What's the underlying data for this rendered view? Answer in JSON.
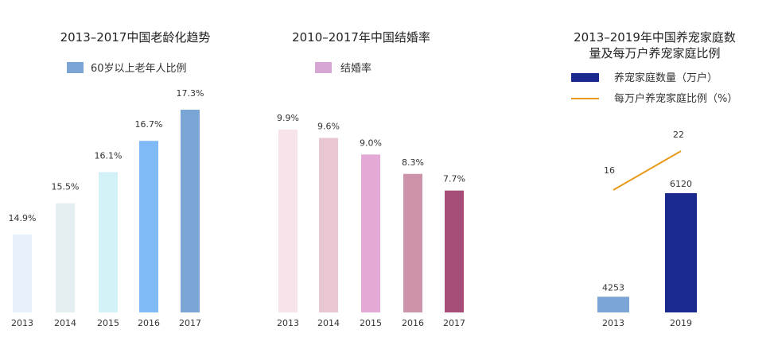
{
  "chart_data": [
    {
      "type": "bar",
      "title": "2013–2017中国老龄化趋势",
      "categories": [
        "2013",
        "2014",
        "2015",
        "2016",
        "2017"
      ],
      "series": [
        {
          "name": "60岁以上老年人比例",
          "values": [
            14.9,
            15.5,
            16.1,
            16.7,
            17.3
          ],
          "labels": [
            "14.9%",
            "15.5%",
            "16.1%",
            "16.7%",
            "17.3%"
          ],
          "colors": [
            "#e6f1fb",
            "#e3eff0",
            "#d3f2f8",
            "#7fbaf6",
            "#7aa5d4"
          ]
        }
      ],
      "legend_color": "#7aa5d4"
    },
    {
      "type": "bar",
      "title": "2010–2017年中国结婚率",
      "categories": [
        "2013",
        "2014",
        "2015",
        "2016",
        "2017"
      ],
      "series": [
        {
          "name": "结婚率",
          "values": [
            9.9,
            9.6,
            9.0,
            8.3,
            7.7
          ],
          "labels": [
            "9.9%",
            "9.6%",
            "9.0%",
            "8.3%",
            "7.7%"
          ],
          "colors": [
            "#f6e4ea",
            "#e9c7d2",
            "#e5a9d8",
            "#cc93ab",
            "#a64e78"
          ]
        }
      ],
      "legend_color": "#d6a6d4"
    },
    {
      "type": "bar",
      "title": "2013–2019年中国养宠家庭数量及每万户养宠家庭比例",
      "title_lines": [
        "2013–2019年中国养宠家庭数",
        "量及每万户养宠家庭比例"
      ],
      "categories": [
        "2013",
        "2019"
      ],
      "series": [
        {
          "name": "养宠家庭数量（万户）",
          "kind": "bar",
          "values": [
            4253,
            6120
          ],
          "labels": [
            "4253",
            "6120"
          ],
          "colors": [
            "#7aa5d4",
            "#1a2a8f"
          ],
          "legend_color": "#1a2a8f"
        },
        {
          "name": "每万户养宠家庭比例（%）",
          "kind": "line",
          "values": [
            16,
            22
          ],
          "labels": [
            "16",
            "22"
          ],
          "color": "#e89a1a"
        }
      ]
    }
  ]
}
